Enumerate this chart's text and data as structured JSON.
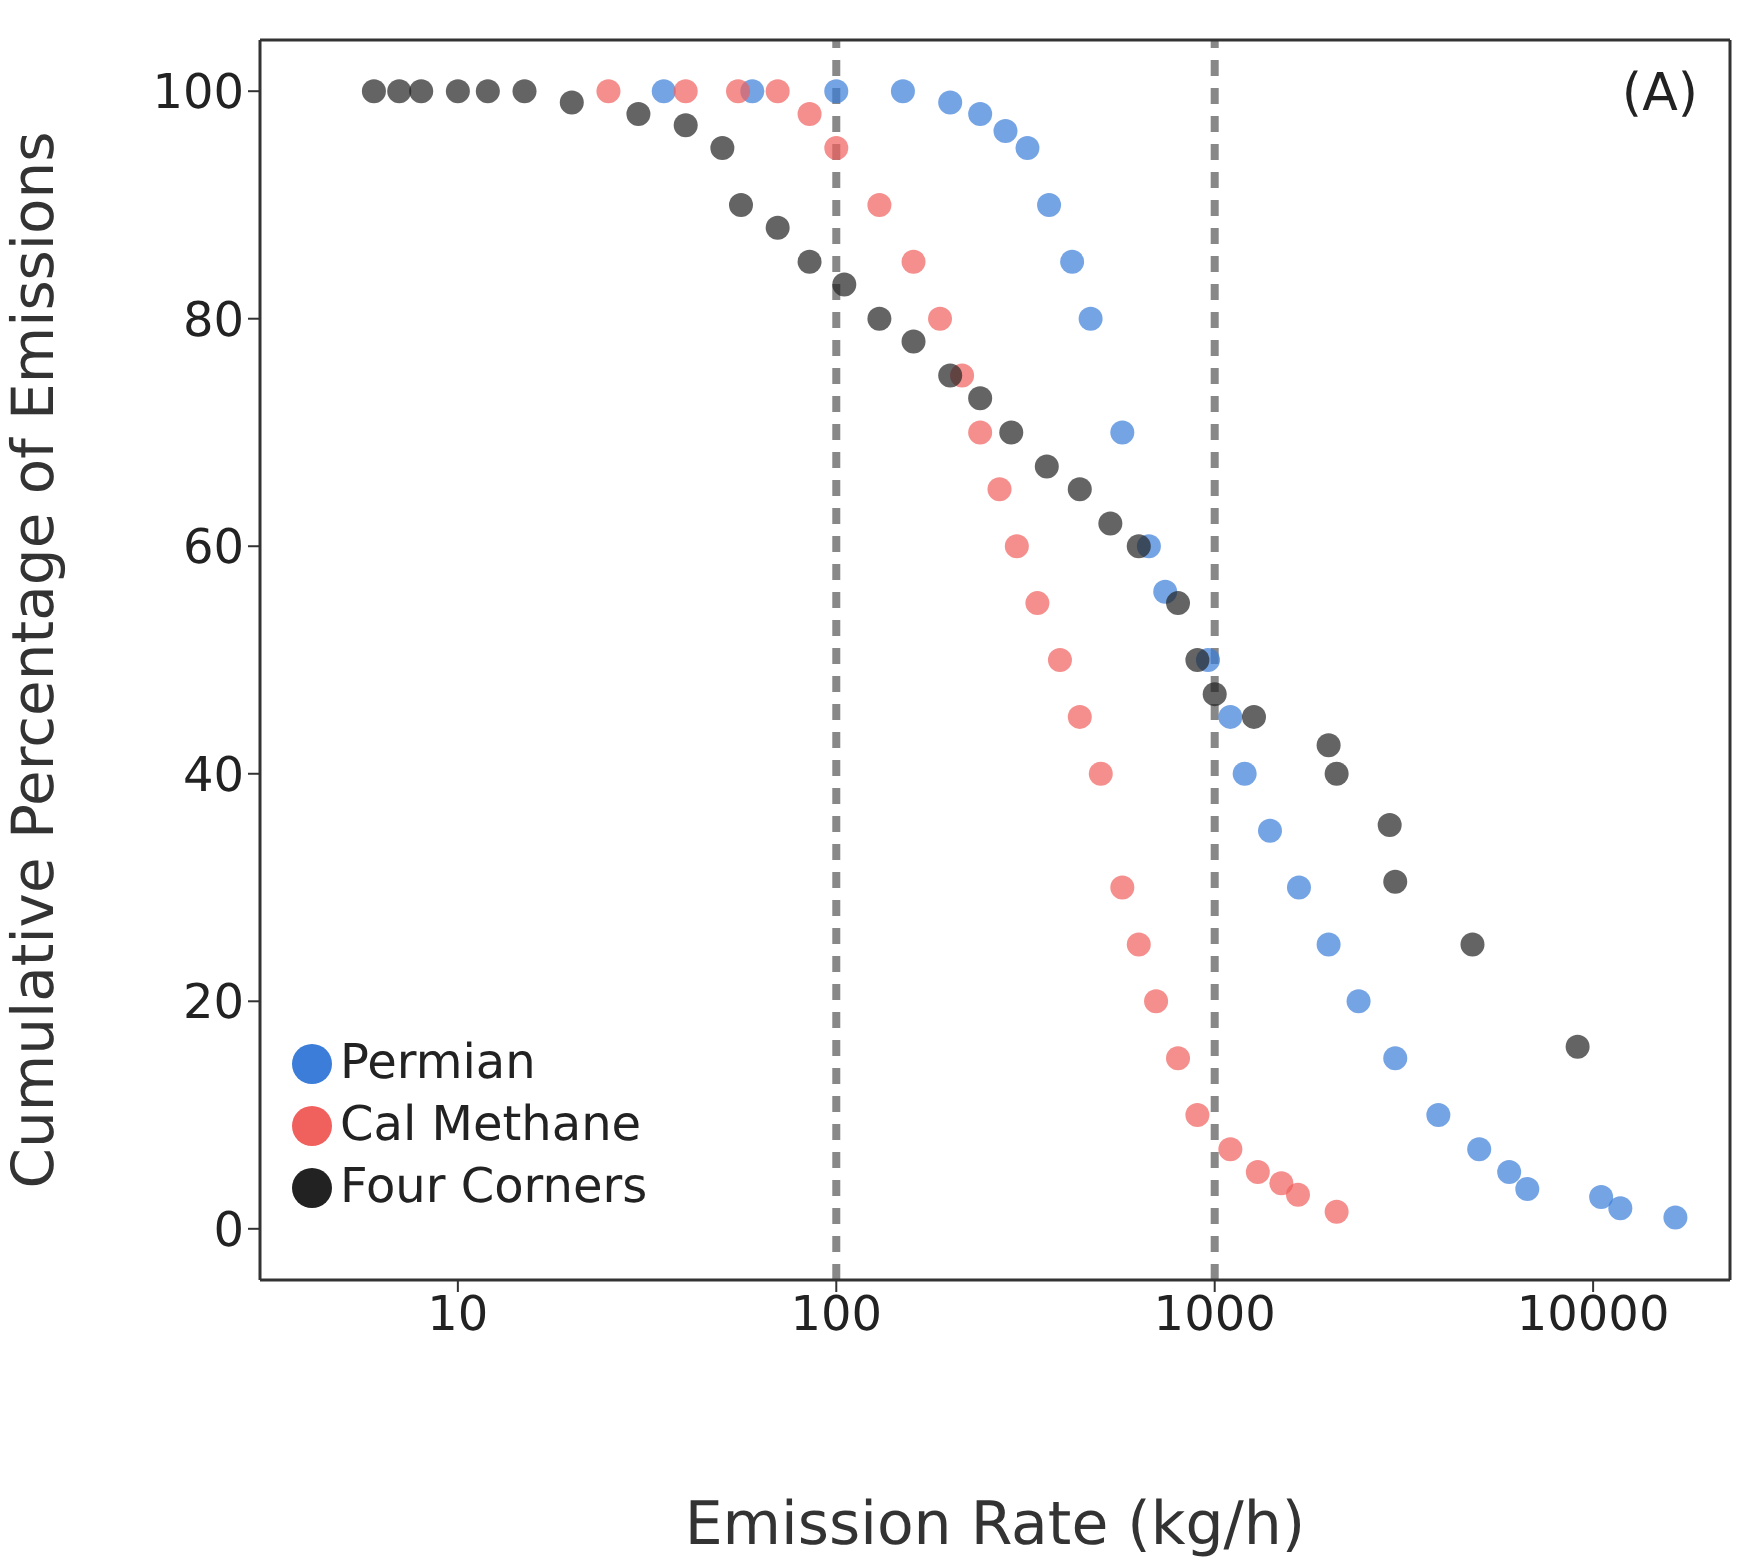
{
  "chart_data": {
    "type": "scatter",
    "xlabel": "Emission Rate (kg/h)",
    "ylabel": "Cumulative Percentage of Emissions",
    "log": "x",
    "xlim": [
      3,
      23000
    ],
    "xticks": [
      10,
      100,
      1000,
      10000
    ],
    "ylim": [
      -4.5,
      104.5
    ],
    "yticks": [
      0,
      20,
      40,
      60,
      80,
      100
    ],
    "grid": false,
    "legend": "bottom left",
    "marker": "circle",
    "ref_lines": [
      {
        "axis": "x",
        "value": 100,
        "color": "#888888",
        "line_style": "dashed"
      },
      {
        "axis": "x",
        "value": 1000,
        "color": "#888888",
        "line_style": "dashed"
      }
    ],
    "annotations": [
      "(A)"
    ],
    "series": [
      {
        "name": "Permian",
        "color": "#3b7dd8",
        "x": [
          35,
          60,
          100,
          150,
          200,
          240,
          280,
          320,
          365,
          420,
          470,
          570,
          670,
          740,
          960,
          1100,
          1200,
          1400,
          1670,
          2000,
          2400,
          3000,
          3900,
          5000,
          6000,
          6700,
          10500,
          11800,
          16500
        ],
        "values": [
          100,
          100,
          100,
          100,
          99,
          98,
          96.5,
          95,
          90,
          85,
          80,
          70,
          60,
          56,
          50,
          45,
          40,
          35,
          30,
          25,
          20,
          15,
          10,
          7,
          5,
          3.5,
          2.8,
          1.8,
          1
        ]
      },
      {
        "name": "Cal Methane",
        "color": "#f0605d",
        "x": [
          25,
          40,
          55,
          70,
          85,
          100,
          130,
          160,
          188,
          215,
          240,
          270,
          300,
          340,
          390,
          440,
          500,
          570,
          630,
          700,
          800,
          900,
          1100,
          1300,
          1500,
          1660,
          2100
        ],
        "values": [
          100,
          100,
          100,
          100,
          98,
          95,
          90,
          85,
          80,
          75,
          70,
          65,
          60,
          55,
          50,
          45,
          40,
          30,
          25,
          20,
          15,
          10,
          7,
          5,
          4,
          3,
          1.5
        ]
      },
      {
        "name": "Four Corners",
        "color": "#222222",
        "x": [
          6,
          7,
          8,
          10,
          12,
          15,
          20,
          30,
          40,
          50,
          56,
          70,
          85,
          105,
          130,
          160,
          200,
          240,
          290,
          360,
          440,
          530,
          630,
          800,
          900,
          1000,
          1270,
          2000,
          2100,
          2900,
          3000,
          4800,
          9100
        ],
        "values": [
          100,
          100,
          100,
          100,
          100,
          100,
          99,
          98,
          97,
          95,
          90,
          88,
          85,
          83,
          80,
          78,
          75,
          73,
          70,
          67,
          65,
          62,
          60,
          55,
          50,
          47,
          45,
          42.5,
          40,
          35.5,
          30.5,
          25,
          16
        ]
      }
    ]
  }
}
